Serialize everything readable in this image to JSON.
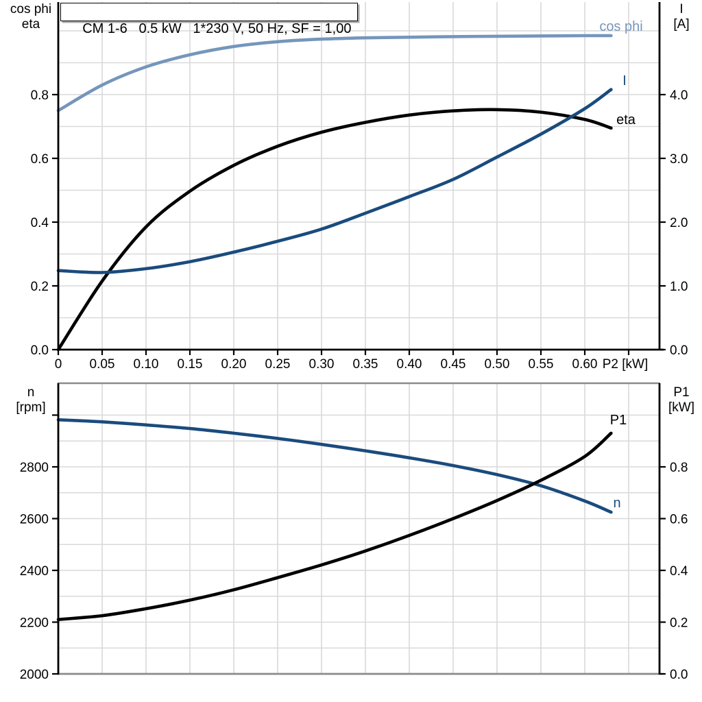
{
  "title_box": {
    "text": "CM 1-6   0.5 kW   1*230 V, 50 Hz, SF = 1,00"
  },
  "axis_corner_labels": {
    "top_left": [
      "cos phi",
      "eta"
    ],
    "top_right": [
      "I",
      "[A]"
    ],
    "bottom_left": [
      "n",
      "[rpm]"
    ],
    "bottom_right": [
      "P1",
      "[kW]"
    ]
  },
  "colors": {
    "light_blue": "#7596bb",
    "dark_blue": "#1a4b7d",
    "black": "#000000",
    "grid": "#d9d9d9",
    "frame_gray": "#8a8a8a"
  },
  "chart_data": [
    {
      "type": "line",
      "title": "CM 1-6 0.5 kW 1*230 V, 50 Hz, SF = 1,00",
      "xlabel": "P2 [kW]",
      "grid": true,
      "legend_position": "end-of-curve",
      "x": [
        0,
        0.05,
        0.1,
        0.15,
        0.2,
        0.25,
        0.3,
        0.35,
        0.4,
        0.45,
        0.5,
        0.55,
        0.6,
        0.63
      ],
      "xticks": {
        "values": [
          0,
          0.05,
          0.1,
          0.15,
          0.2,
          0.25,
          0.3,
          0.35,
          0.4,
          0.45,
          0.5,
          0.55,
          0.6
        ],
        "labels": [
          "0",
          "0.05",
          "0.10",
          "0.15",
          "0.20",
          "0.25",
          "0.30",
          "0.35",
          "0.40",
          "0.45",
          "0.50",
          "0.55",
          "0.60"
        ],
        "end_label": "P2 [kW]"
      },
      "axes": {
        "left": {
          "label": "cos phi / eta",
          "tick_values": [
            0,
            0.2,
            0.4,
            0.6,
            0.8
          ],
          "tick_labels": [
            "0.0",
            "0.2",
            "0.4",
            "0.6",
            "0.8"
          ],
          "range": [
            0,
            1.09
          ]
        },
        "right": {
          "label": "I [A]",
          "tick_values": [
            0,
            1,
            2,
            3,
            4
          ],
          "tick_labels": [
            "0.0",
            "1.0",
            "2.0",
            "3.0",
            "4.0"
          ],
          "range": [
            0,
            5.45
          ]
        }
      },
      "series": [
        {
          "name": "cos phi",
          "axis": "left",
          "color": "light_blue",
          "values": [
            0.75,
            0.83,
            0.887,
            0.925,
            0.951,
            0.966,
            0.974,
            0.978,
            0.98,
            0.982,
            0.983,
            0.984,
            0.985,
            0.985
          ]
        },
        {
          "name": "eta",
          "axis": "left",
          "color": "black",
          "values": [
            0.0,
            0.215,
            0.385,
            0.497,
            0.578,
            0.638,
            0.682,
            0.713,
            0.736,
            0.749,
            0.753,
            0.745,
            0.722,
            0.695
          ]
        },
        {
          "name": "I",
          "axis": "right",
          "color": "dark_blue",
          "values": [
            1.24,
            1.21,
            1.27,
            1.38,
            1.53,
            1.7,
            1.89,
            2.14,
            2.4,
            2.67,
            3.02,
            3.38,
            3.78,
            4.08
          ]
        }
      ]
    },
    {
      "type": "line",
      "xlabel": "",
      "grid": true,
      "legend_position": "end-of-curve",
      "x": [
        0,
        0.05,
        0.1,
        0.15,
        0.2,
        0.25,
        0.3,
        0.35,
        0.4,
        0.45,
        0.5,
        0.55,
        0.6,
        0.63
      ],
      "axes": {
        "left": {
          "label": "n [rpm]",
          "tick_values": [
            2000,
            2200,
            2400,
            2600,
            2800
          ],
          "tick_labels": [
            "2000",
            "2200",
            "2400",
            "2600",
            "2800"
          ],
          "range": [
            2000,
            3123
          ]
        },
        "right": {
          "label": "P1 [kW]",
          "tick_values": [
            0,
            0.2,
            0.4,
            0.6,
            0.8
          ],
          "tick_labels": [
            "0.0",
            "0.2",
            "0.4",
            "0.6",
            "0.8"
          ],
          "range": [
            0,
            1.12
          ]
        }
      },
      "series": [
        {
          "name": "n",
          "axis": "left",
          "color": "dark_blue",
          "values": [
            2982,
            2974,
            2962,
            2948,
            2930,
            2910,
            2887,
            2862,
            2835,
            2805,
            2770,
            2727,
            2668,
            2625
          ]
        },
        {
          "name": "P1",
          "axis": "right",
          "color": "black",
          "values": [
            0.21,
            0.225,
            0.252,
            0.285,
            0.325,
            0.372,
            0.421,
            0.475,
            0.535,
            0.6,
            0.67,
            0.748,
            0.84,
            0.93
          ]
        }
      ]
    }
  ]
}
